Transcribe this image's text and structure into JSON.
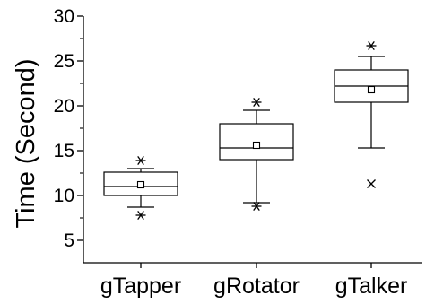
{
  "chart_data": {
    "type": "box",
    "title": "",
    "xlabel": "",
    "ylabel": "Time (Second)",
    "ylim": [
      2.5,
      30
    ],
    "yticks": [
      5,
      10,
      15,
      20,
      25,
      30
    ],
    "yminor": [
      7.5,
      12.5,
      17.5,
      22.5,
      27.5
    ],
    "categories": [
      "gTapper",
      "gRotator",
      "gTalker"
    ],
    "boxes": [
      {
        "category": "gTapper",
        "whisker_low": 8.7,
        "q1": 10.0,
        "median": 11.0,
        "q3": 12.6,
        "whisker_high": 13.0,
        "mean": 11.2,
        "min": 7.8,
        "max": 13.9,
        "outliers": []
      },
      {
        "category": "gRotator",
        "whisker_low": 9.2,
        "q1": 14.0,
        "median": 15.3,
        "q3": 18.0,
        "whisker_high": 19.5,
        "mean": 15.6,
        "min": 8.8,
        "max": 20.4,
        "outliers": []
      },
      {
        "category": "gTalker",
        "whisker_low": 15.3,
        "q1": 20.4,
        "median": 22.2,
        "q3": 24.0,
        "whisker_high": 25.5,
        "mean": 21.8,
        "min": 11.3,
        "max": 26.7,
        "outliers": [
          11.3
        ]
      }
    ]
  }
}
